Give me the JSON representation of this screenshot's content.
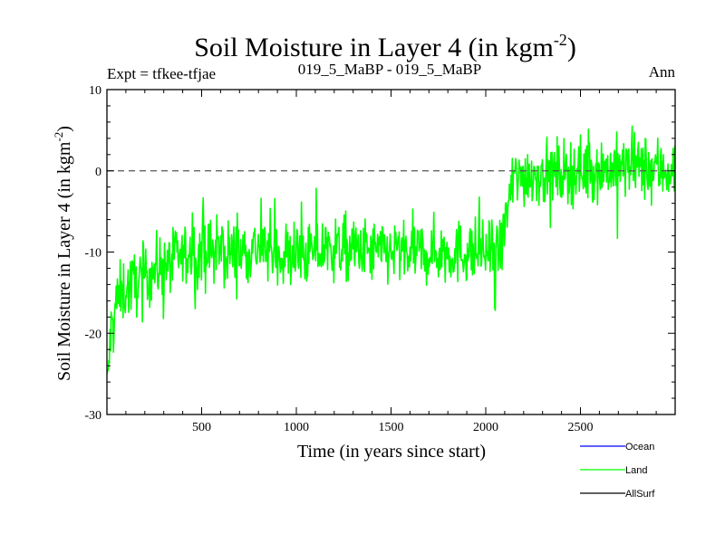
{
  "header": {
    "title": "Soil Moisture in Layer 4 (in kgm",
    "title_sup": "-2",
    "title_end": ")",
    "left_label": "Expt = tfkee-tfjae",
    "center_label": "019_5_MaBP - 019_5_MaBP",
    "right_label": "Ann"
  },
  "chart_data": {
    "type": "line",
    "xlabel": "Time (in years since start)",
    "ylabel": "Soil Moisture in Layer 4 (in kgm",
    "ylabel_sup": "-2",
    "ylabel_end": ")",
    "xlim": [
      0,
      3000
    ],
    "ylim": [
      -30,
      10
    ],
    "x_ticks": [
      500,
      1000,
      1500,
      2000,
      2500
    ],
    "x_tick_labels": [
      "500",
      "1000",
      "1500",
      "2000",
      "2500"
    ],
    "y_ticks": [
      10,
      0,
      -10,
      -20,
      -30
    ],
    "y_tick_labels": [
      "10",
      "0",
      "-10",
      "-20",
      "-30"
    ],
    "reference_line": {
      "y": 0,
      "style": "dashed"
    },
    "series": [
      {
        "name": "Land",
        "color": "#00ff00",
        "x_start": 1,
        "x_end": 3000,
        "trend_points": [
          [
            1,
            -27
          ],
          [
            20,
            -20
          ],
          [
            50,
            -16
          ],
          [
            100,
            -14.5
          ],
          [
            200,
            -13
          ],
          [
            300,
            -11.5
          ],
          [
            400,
            -10.5
          ],
          [
            500,
            -10
          ],
          [
            700,
            -10
          ],
          [
            800,
            -9.5
          ],
          [
            1000,
            -10.5
          ],
          [
            1200,
            -9.5
          ],
          [
            1400,
            -10
          ],
          [
            1600,
            -10
          ],
          [
            1800,
            -10
          ],
          [
            2000,
            -10
          ],
          [
            2080,
            -10
          ],
          [
            2110,
            -5
          ],
          [
            2150,
            -1
          ],
          [
            2200,
            -0.5
          ],
          [
            2500,
            0
          ],
          [
            2800,
            0.5
          ],
          [
            3000,
            0
          ]
        ],
        "noise_amplitude": 2.2
      }
    ],
    "legend": {
      "placement": "bottom-right",
      "entries": [
        {
          "name": "Ocean",
          "color": "#0000ff"
        },
        {
          "name": "Land",
          "color": "#00ff00"
        },
        {
          "name": "AllSurf",
          "color": "#000000"
        }
      ]
    }
  }
}
